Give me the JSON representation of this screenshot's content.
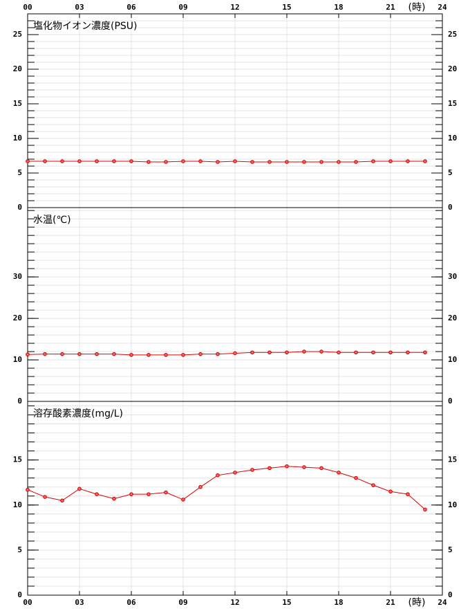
{
  "chart_data": [
    {
      "type": "line",
      "title": "塩化物イオン濃度(PSU)",
      "xlabel": "(時)",
      "color": "#e00000",
      "x": [
        0,
        1,
        2,
        3,
        4,
        5,
        6,
        7,
        8,
        9,
        10,
        11,
        12,
        13,
        14,
        15,
        16,
        17,
        18,
        19,
        20,
        21,
        22,
        23
      ],
      "values": [
        6.7,
        6.7,
        6.7,
        6.7,
        6.7,
        6.7,
        6.7,
        6.6,
        6.6,
        6.7,
        6.7,
        6.6,
        6.7,
        6.6,
        6.6,
        6.6,
        6.6,
        6.6,
        6.6,
        6.6,
        6.7,
        6.7,
        6.7,
        6.7
      ],
      "xlim": [
        0,
        24
      ],
      "xticks": [
        {
          "value": 0,
          "label": "00"
        },
        {
          "value": 3,
          "label": "03"
        },
        {
          "value": 6,
          "label": "06"
        },
        {
          "value": 9,
          "label": "09"
        },
        12,
        15,
        18,
        21,
        24
      ],
      "ylim": [
        0,
        28
      ],
      "yticks": [
        0,
        5,
        10,
        15,
        20,
        25
      ],
      "minor_ytick_step": 1,
      "grid": true
    },
    {
      "type": "line",
      "title": "水温(℃)",
      "color": "#e00000",
      "x": [
        0,
        1,
        2,
        3,
        4,
        5,
        6,
        7,
        8,
        9,
        10,
        11,
        12,
        13,
        14,
        15,
        16,
        17,
        18,
        19,
        20,
        21,
        22,
        23
      ],
      "values": [
        11.3,
        11.4,
        11.4,
        11.4,
        11.4,
        11.4,
        11.2,
        11.2,
        11.2,
        11.2,
        11.4,
        11.4,
        11.6,
        11.8,
        11.8,
        11.8,
        12.0,
        12.0,
        11.8,
        11.8,
        11.8,
        11.8,
        11.8,
        11.8
      ],
      "xlim": [
        0,
        24
      ],
      "ylim": [
        0,
        46.7
      ],
      "yticks": [
        0,
        10,
        20,
        30
      ],
      "minor_ytick_step": 2,
      "grid": true
    },
    {
      "type": "line",
      "title": "溶存酸素濃度(mg/L)",
      "xlabel": "(時)",
      "color": "#e00000",
      "x": [
        0,
        1,
        2,
        3,
        4,
        5,
        6,
        7,
        8,
        9,
        10,
        11,
        12,
        13,
        14,
        15,
        16,
        17,
        18,
        19,
        20,
        21,
        22,
        23
      ],
      "values": [
        11.7,
        10.9,
        10.5,
        11.8,
        11.2,
        10.7,
        11.2,
        11.2,
        11.4,
        10.6,
        12.0,
        13.3,
        13.6,
        13.9,
        14.1,
        14.3,
        14.2,
        14.1,
        13.6,
        13.0,
        12.2,
        11.5,
        11.2,
        9.5
      ],
      "xlim": [
        0,
        24
      ],
      "xticks": [
        {
          "value": 0,
          "label": "00"
        },
        {
          "value": 3,
          "label": "03"
        },
        {
          "value": 6,
          "label": "06"
        },
        {
          "value": 9,
          "label": "09"
        },
        12,
        15,
        18,
        21,
        24
      ],
      "ylim": [
        0,
        21.5
      ],
      "yticks": [
        0,
        5,
        10,
        15
      ],
      "minor_ytick_step": 1,
      "grid": true
    }
  ]
}
